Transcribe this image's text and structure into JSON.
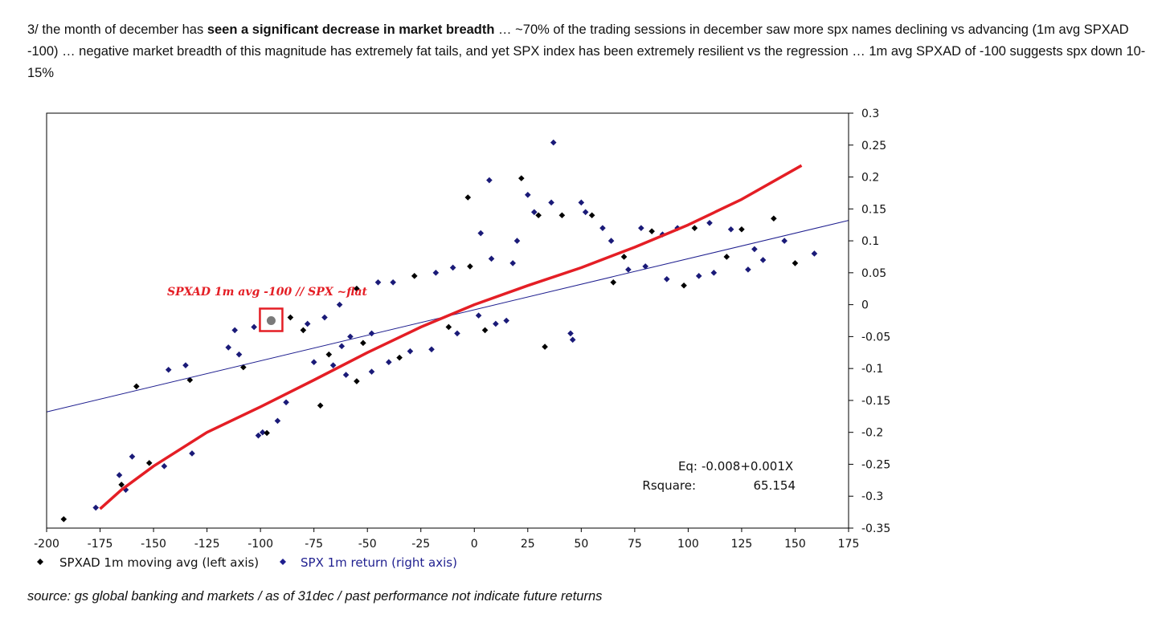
{
  "intro": {
    "p1": "3/ the month of december has ",
    "bold": "seen a significant decrease in market breadth",
    "p2": " … ~70% of the trading sessions in december saw more spx names declining vs advancing (1m avg SPXAD -100) … negative market breadth of this magnitude has extremely fat tails, and yet SPX index has been extremely resilient vs the regression … 1m avg SPXAD of -100 suggests spx down 10-15%"
  },
  "source": "source: gs global banking and markets / as of 31dec / past performance not indicate future returns",
  "chart_data": {
    "type": "scatter",
    "xlim": [
      -200,
      175
    ],
    "ylim": [
      -0.35,
      0.3
    ],
    "x_ticks": [
      -200,
      -175,
      -150,
      -125,
      -100,
      -75,
      -50,
      -25,
      0,
      25,
      50,
      75,
      100,
      125,
      150,
      175
    ],
    "y_ticks": [
      0.3,
      0.25,
      0.2,
      0.15,
      0.1,
      0.05,
      0,
      -0.05,
      -0.1,
      -0.15,
      -0.2,
      -0.25,
      -0.3,
      -0.35
    ],
    "legend": [
      {
        "label": "SPXAD 1m moving avg (left axis)",
        "color": "#000000",
        "marker": "diamond"
      },
      {
        "label": "SPX 1m return (right axis)",
        "color": "#1f1f8f",
        "marker": "diamond"
      }
    ],
    "regression_line": {
      "intercept": -0.008,
      "slope": 0.001,
      "color": "#1f1f8f"
    },
    "fit_curve": {
      "color": "#e41e25",
      "points": [
        [
          -175,
          -0.32
        ],
        [
          -165,
          -0.29
        ],
        [
          -150,
          -0.253
        ],
        [
          -125,
          -0.2
        ],
        [
          -100,
          -0.16
        ],
        [
          -75,
          -0.118
        ],
        [
          -50,
          -0.075
        ],
        [
          -25,
          -0.035
        ],
        [
          0,
          0.0
        ],
        [
          25,
          0.03
        ],
        [
          50,
          0.058
        ],
        [
          75,
          0.09
        ],
        [
          100,
          0.125
        ],
        [
          125,
          0.165
        ],
        [
          153,
          0.218
        ]
      ]
    },
    "equation": {
      "eq_label": "Eq:",
      "eq_value": "-0.008+0.001X",
      "r_label": "Rsquare:",
      "r_value": "65.154"
    },
    "annotation": {
      "text": "SPXAD 1m avg -100 // SPX ~flat",
      "x": -95,
      "y": -0.025
    },
    "cloud_points": [
      [
        -192,
        -0.336
      ],
      [
        -177,
        -0.318
      ],
      [
        -166,
        -0.267
      ],
      [
        -165,
        -0.282
      ],
      [
        -163,
        -0.29
      ],
      [
        -160,
        -0.238
      ],
      [
        -152,
        -0.248
      ],
      [
        -145,
        -0.253
      ],
      [
        -132,
        -0.233
      ],
      [
        -158,
        -0.128
      ],
      [
        -143,
        -0.102
      ],
      [
        -135,
        -0.095
      ],
      [
        -133,
        -0.118
      ],
      [
        -115,
        -0.067
      ],
      [
        -110,
        -0.078
      ],
      [
        -108,
        -0.098
      ],
      [
        -101,
        -0.205
      ],
      [
        -99,
        -0.2
      ],
      [
        -97,
        -0.201
      ],
      [
        -92,
        -0.182
      ],
      [
        -88,
        -0.153
      ],
      [
        -72,
        -0.158
      ],
      [
        -66,
        -0.095
      ],
      [
        -60,
        -0.11
      ],
      [
        -55,
        -0.12
      ],
      [
        -48,
        -0.105
      ],
      [
        -40,
        -0.09
      ],
      [
        -35,
        -0.083
      ],
      [
        -30,
        -0.073
      ],
      [
        -20,
        -0.07
      ],
      [
        -12,
        -0.035
      ],
      [
        -8,
        -0.045
      ],
      [
        2,
        -0.017
      ],
      [
        5,
        -0.04
      ],
      [
        10,
        -0.03
      ],
      [
        15,
        -0.025
      ],
      [
        33,
        -0.066
      ],
      [
        45,
        -0.045
      ],
      [
        46,
        -0.055
      ],
      [
        -3,
        0.168
      ],
      [
        3,
        0.112
      ],
      [
        7,
        0.195
      ],
      [
        22,
        0.198
      ],
      [
        25,
        0.172
      ],
      [
        28,
        0.145
      ],
      [
        30,
        0.14
      ],
      [
        36,
        0.16
      ],
      [
        37,
        0.254
      ],
      [
        41,
        0.14
      ],
      [
        50,
        0.16
      ],
      [
        52,
        0.145
      ],
      [
        55,
        0.14
      ],
      [
        60,
        0.12
      ],
      [
        64,
        0.1
      ],
      [
        70,
        0.075
      ],
      [
        72,
        0.055
      ],
      [
        78,
        0.12
      ],
      [
        83,
        0.115
      ],
      [
        88,
        0.11
      ],
      [
        95,
        0.12
      ],
      [
        103,
        0.12
      ],
      [
        110,
        0.128
      ],
      [
        120,
        0.118
      ],
      [
        125,
        0.118
      ],
      [
        131,
        0.087
      ],
      [
        135,
        0.07
      ],
      [
        140,
        0.135
      ],
      [
        145,
        0.1
      ],
      [
        159,
        0.08
      ],
      [
        150,
        0.065
      ],
      [
        -112,
        -0.04
      ],
      [
        -103,
        -0.035
      ],
      [
        -80,
        -0.04
      ],
      [
        -70,
        -0.02
      ],
      [
        -63,
        0.0
      ],
      [
        -55,
        0.025
      ],
      [
        -45,
        0.035
      ],
      [
        -38,
        0.035
      ],
      [
        -28,
        0.045
      ],
      [
        -18,
        0.05
      ],
      [
        -10,
        0.058
      ],
      [
        -2,
        0.06
      ],
      [
        8,
        0.072
      ],
      [
        18,
        0.065
      ],
      [
        -86,
        -0.02
      ],
      [
        -78,
        -0.03
      ],
      [
        -75,
        -0.09
      ],
      [
        -68,
        -0.078
      ],
      [
        -62,
        -0.065
      ],
      [
        -58,
        -0.05
      ],
      [
        -52,
        -0.06
      ],
      [
        -48,
        -0.045
      ],
      [
        20,
        0.1
      ],
      [
        65,
        0.035
      ],
      [
        80,
        0.06
      ],
      [
        90,
        0.04
      ],
      [
        98,
        0.03
      ],
      [
        105,
        0.045
      ],
      [
        112,
        0.05
      ],
      [
        118,
        0.075
      ],
      [
        128,
        0.055
      ]
    ]
  }
}
